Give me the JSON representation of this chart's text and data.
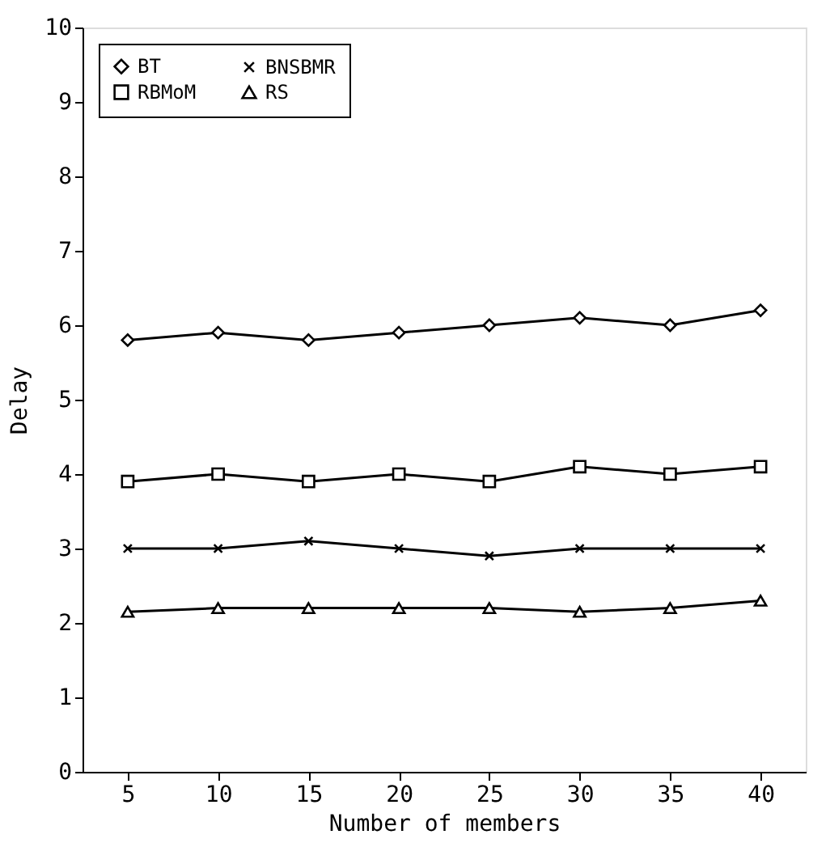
{
  "chart_data": {
    "type": "line",
    "xlabel": "Number of members",
    "ylabel": "Delay",
    "categories": [
      "5",
      "10",
      "15",
      "20",
      "25",
      "30",
      "35",
      "40"
    ],
    "ylim": [
      0,
      10
    ],
    "yticks": [
      0,
      1,
      2,
      3,
      4,
      5,
      6,
      7,
      8,
      9,
      10
    ],
    "grid": false,
    "legend": "top left",
    "line_style": "solid",
    "series": [
      {
        "name": "BT",
        "color": "#000000",
        "marker": "diamond",
        "values": [
          5.8,
          5.9,
          5.8,
          5.9,
          6.0,
          6.1,
          6.0,
          6.2
        ]
      },
      {
        "name": "RBMoM",
        "color": "#000000",
        "marker": "square",
        "values": [
          3.9,
          4.0,
          3.9,
          4.0,
          3.9,
          4.1,
          4.0,
          4.1
        ]
      },
      {
        "name": "BNSBMR",
        "color": "#000000",
        "marker": "cross",
        "values": [
          3.0,
          3.0,
          3.1,
          3.0,
          2.9,
          3.0,
          3.0,
          3.0
        ]
      },
      {
        "name": "RS",
        "color": "#000000",
        "marker": "triangle",
        "values": [
          2.15,
          2.2,
          2.2,
          2.2,
          2.2,
          2.15,
          2.2,
          2.3
        ]
      }
    ]
  }
}
